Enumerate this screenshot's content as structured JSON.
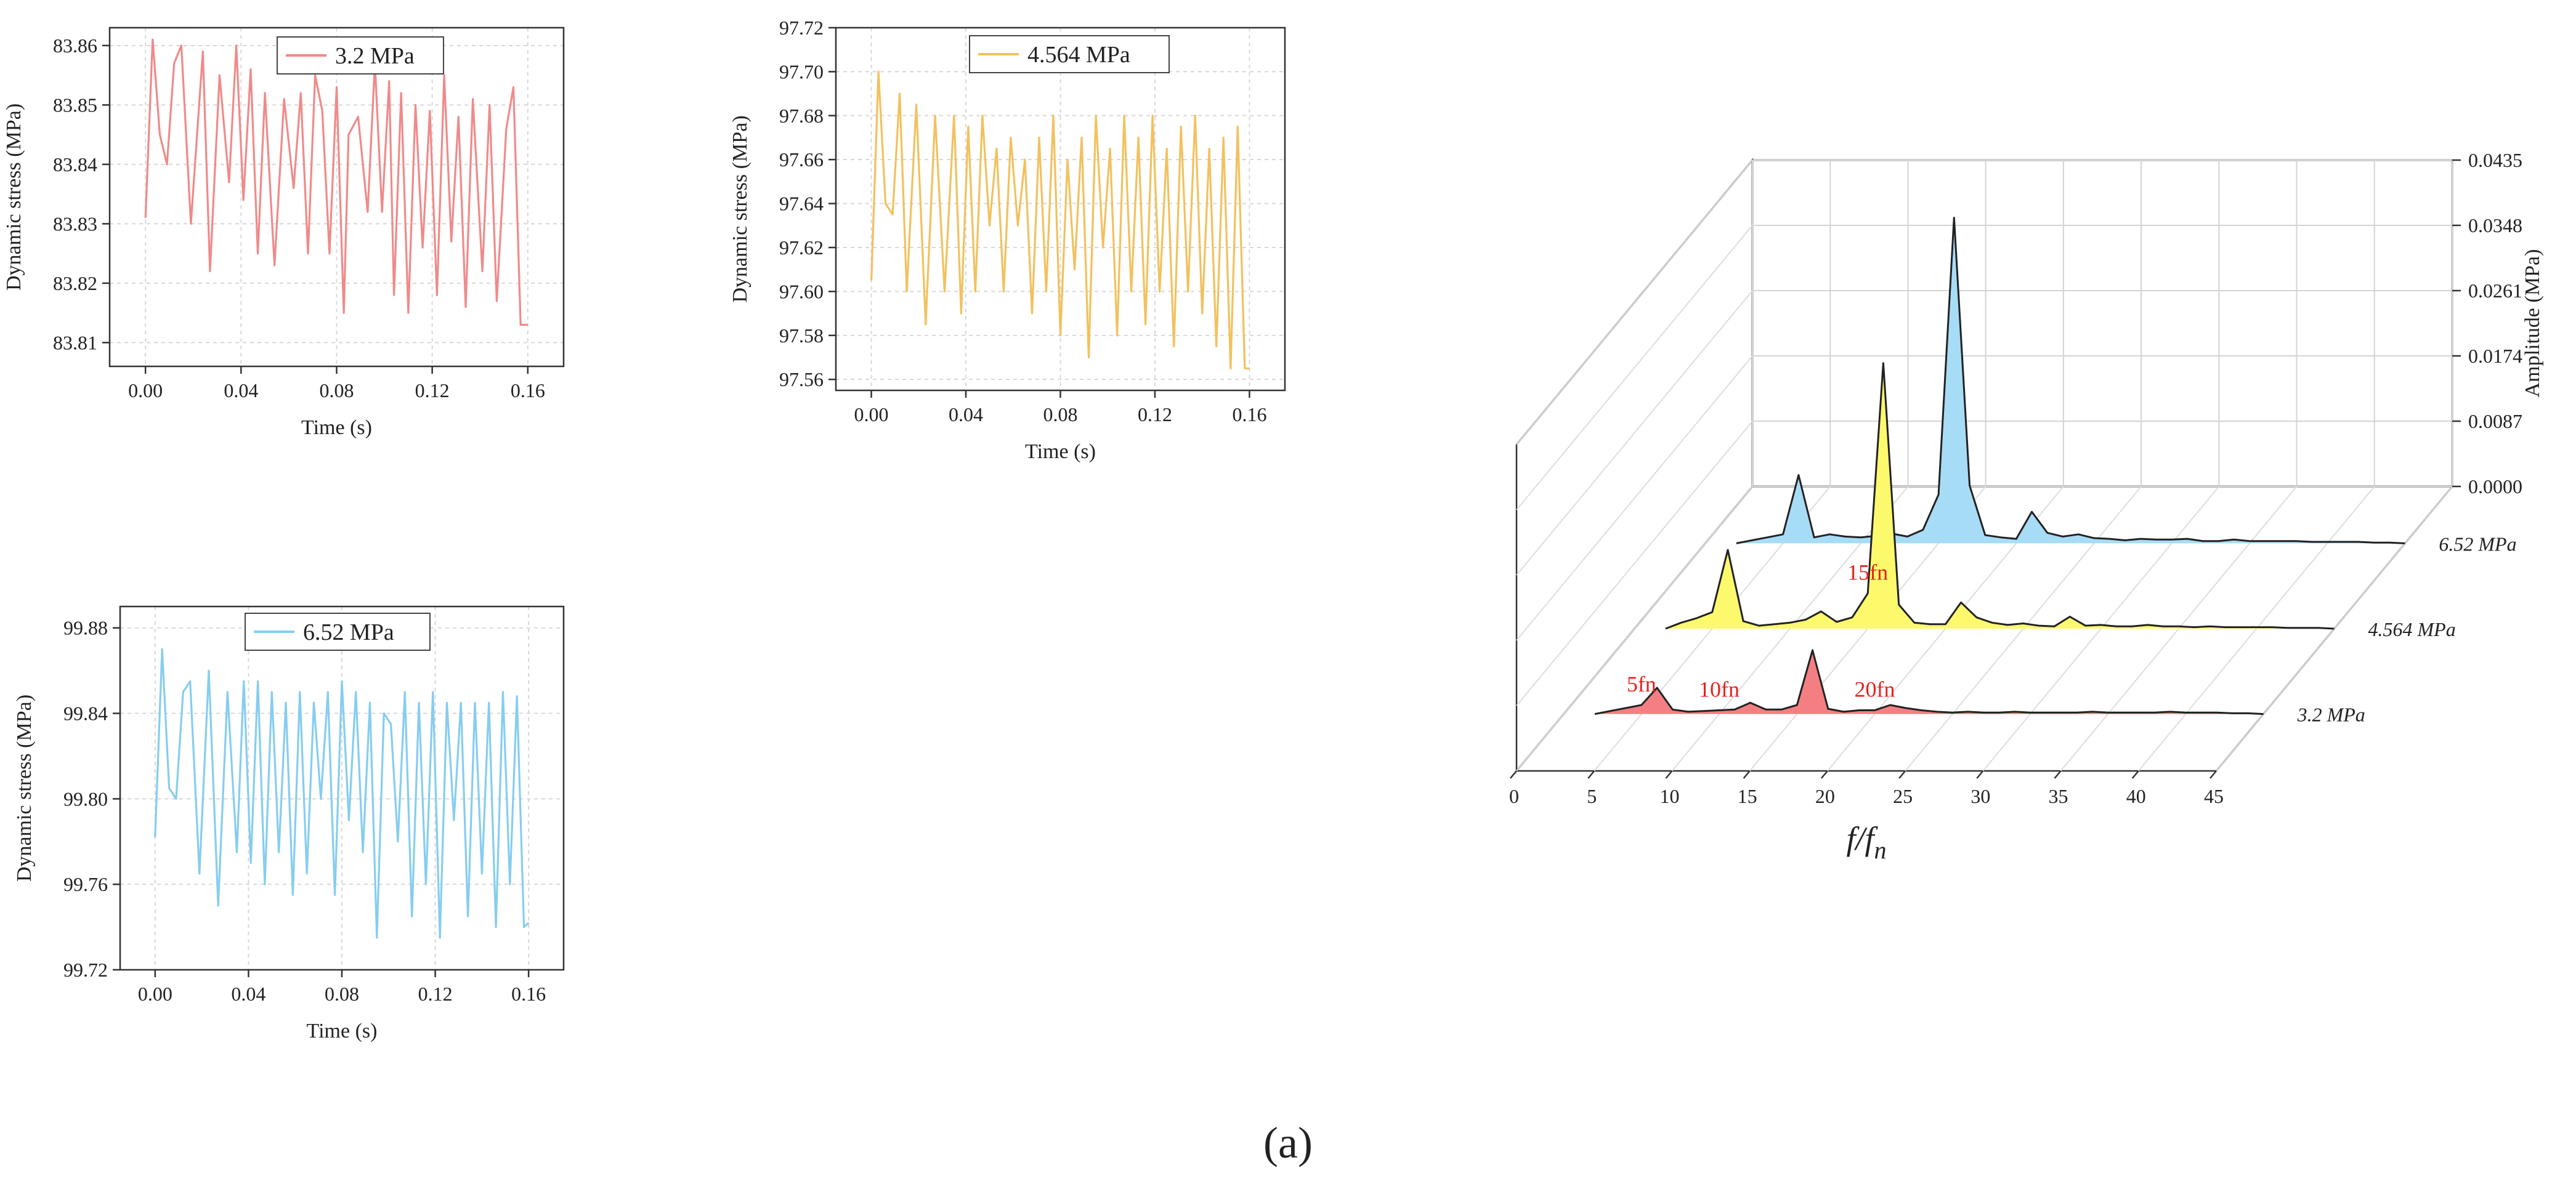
{
  "caption": "(a)",
  "chart_data": [
    {
      "id": "panel1",
      "type": "line",
      "legend": "3.2 MPa",
      "color": "#f08a8a",
      "xlabel": "Time (s)",
      "ylabel": "Dynamic stress (MPa)",
      "xlim": [
        -0.015,
        0.175
      ],
      "ylim": [
        83.806,
        83.863
      ],
      "xticks": [
        0.0,
        0.04,
        0.08,
        0.12,
        0.16
      ],
      "xtick_labels": [
        "0.00",
        "0.04",
        "0.08",
        "0.12",
        "0.16"
      ],
      "yticks": [
        83.81,
        83.82,
        83.83,
        83.84,
        83.85,
        83.86
      ],
      "ytick_labels": [
        "83.81",
        "83.82",
        "83.83",
        "83.84",
        "83.85",
        "83.86"
      ],
      "x": [
        0.0,
        0.003,
        0.006,
        0.009,
        0.012,
        0.015,
        0.019,
        0.024,
        0.027,
        0.031,
        0.035,
        0.038,
        0.041,
        0.044,
        0.047,
        0.05,
        0.054,
        0.058,
        0.062,
        0.065,
        0.068,
        0.071,
        0.074,
        0.077,
        0.08,
        0.083,
        0.085,
        0.089,
        0.093,
        0.096,
        0.099,
        0.102,
        0.104,
        0.107,
        0.11,
        0.113,
        0.116,
        0.119,
        0.122,
        0.125,
        0.128,
        0.131,
        0.134,
        0.137,
        0.141,
        0.144,
        0.147,
        0.151,
        0.154,
        0.157,
        0.16
      ],
      "y": [
        83.831,
        83.861,
        83.845,
        83.84,
        83.857,
        83.86,
        83.83,
        83.859,
        83.822,
        83.855,
        83.837,
        83.86,
        83.834,
        83.856,
        83.825,
        83.852,
        83.823,
        83.851,
        83.836,
        83.852,
        83.825,
        83.855,
        83.849,
        83.825,
        83.853,
        83.815,
        83.845,
        83.848,
        83.832,
        83.857,
        83.832,
        83.854,
        83.818,
        83.852,
        83.815,
        83.85,
        83.826,
        83.849,
        83.818,
        83.855,
        83.827,
        83.848,
        83.816,
        83.851,
        83.822,
        83.85,
        83.817,
        83.846,
        83.853,
        83.813,
        83.813
      ]
    },
    {
      "id": "panel2",
      "type": "line",
      "legend": "4.564 MPa",
      "color": "#f2c15e",
      "xlabel": "Time (s)",
      "ylabel": "Dynamic stress (MPa)",
      "xlim": [
        -0.015,
        0.175
      ],
      "ylim": [
        97.555,
        97.72
      ],
      "xticks": [
        0.0,
        0.04,
        0.08,
        0.12,
        0.16
      ],
      "xtick_labels": [
        "0.00",
        "0.04",
        "0.08",
        "0.12",
        "0.16"
      ],
      "yticks": [
        97.56,
        97.58,
        97.6,
        97.62,
        97.64,
        97.66,
        97.68,
        97.7,
        97.72
      ],
      "ytick_labels": [
        "97.56",
        "97.58",
        "97.60",
        "97.62",
        "97.64",
        "97.66",
        "97.68",
        "97.70",
        "97.72"
      ],
      "x": [
        0.0,
        0.003,
        0.006,
        0.009,
        0.012,
        0.015,
        0.019,
        0.023,
        0.027,
        0.031,
        0.035,
        0.038,
        0.041,
        0.044,
        0.047,
        0.05,
        0.053,
        0.056,
        0.059,
        0.062,
        0.065,
        0.068,
        0.071,
        0.074,
        0.077,
        0.08,
        0.083,
        0.086,
        0.089,
        0.092,
        0.095,
        0.098,
        0.101,
        0.104,
        0.107,
        0.11,
        0.113,
        0.116,
        0.119,
        0.122,
        0.125,
        0.128,
        0.131,
        0.134,
        0.137,
        0.14,
        0.143,
        0.146,
        0.149,
        0.152,
        0.155,
        0.158,
        0.16
      ],
      "y": [
        97.605,
        97.7,
        97.64,
        97.635,
        97.69,
        97.6,
        97.685,
        97.585,
        97.68,
        97.6,
        97.68,
        97.59,
        97.675,
        97.6,
        97.68,
        97.63,
        97.665,
        97.6,
        97.67,
        97.63,
        97.66,
        97.59,
        97.67,
        97.6,
        97.68,
        97.58,
        97.66,
        97.61,
        97.67,
        97.57,
        97.68,
        97.62,
        97.665,
        97.58,
        97.68,
        97.6,
        97.67,
        97.585,
        97.68,
        97.6,
        97.665,
        97.575,
        97.675,
        97.6,
        97.68,
        97.59,
        97.665,
        97.575,
        97.67,
        97.565,
        97.675,
        97.565,
        97.565
      ]
    },
    {
      "id": "panel3",
      "type": "line",
      "legend": "6.52 MPa",
      "color": "#86cdf0",
      "xlabel": "Time (s)",
      "ylabel": "Dynamic stress (MPa)",
      "xlim": [
        -0.015,
        0.175
      ],
      "ylim": [
        99.72,
        99.89
      ],
      "xticks": [
        0.0,
        0.04,
        0.08,
        0.12,
        0.16
      ],
      "xtick_labels": [
        "0.00",
        "0.04",
        "0.08",
        "0.12",
        "0.16"
      ],
      "yticks": [
        99.72,
        99.76,
        99.8,
        99.84,
        99.88
      ],
      "ytick_labels": [
        "99.72",
        "99.76",
        "99.80",
        "99.84",
        "99.88"
      ],
      "x": [
        0.0,
        0.003,
        0.006,
        0.009,
        0.012,
        0.015,
        0.019,
        0.023,
        0.027,
        0.031,
        0.035,
        0.038,
        0.041,
        0.044,
        0.047,
        0.05,
        0.053,
        0.056,
        0.059,
        0.062,
        0.065,
        0.068,
        0.071,
        0.074,
        0.077,
        0.08,
        0.083,
        0.086,
        0.089,
        0.092,
        0.095,
        0.098,
        0.101,
        0.104,
        0.107,
        0.11,
        0.113,
        0.116,
        0.119,
        0.122,
        0.125,
        0.128,
        0.131,
        0.134,
        0.137,
        0.14,
        0.143,
        0.146,
        0.149,
        0.152,
        0.155,
        0.158,
        0.16
      ],
      "y": [
        99.782,
        99.87,
        99.805,
        99.8,
        99.85,
        99.855,
        99.765,
        99.86,
        99.75,
        99.85,
        99.775,
        99.855,
        99.77,
        99.855,
        99.76,
        99.85,
        99.775,
        99.845,
        99.755,
        99.85,
        99.765,
        99.845,
        99.8,
        99.85,
        99.755,
        99.855,
        99.79,
        99.85,
        99.775,
        99.845,
        99.735,
        99.84,
        99.835,
        99.78,
        99.85,
        99.745,
        99.845,
        99.76,
        99.85,
        99.735,
        99.845,
        99.79,
        99.845,
        99.745,
        99.845,
        99.765,
        99.845,
        99.74,
        99.85,
        99.76,
        99.848,
        99.74,
        99.742
      ]
    },
    {
      "id": "panel4",
      "type": "area",
      "projection": "3d-waterfall",
      "xlabel": "f/fn",
      "xlabel_main": "f/f",
      "xlabel_sub": "n",
      "zlabel": "Amplitude (MPa)",
      "xlim": [
        0,
        45
      ],
      "zlim": [
        0,
        0.0435
      ],
      "xticks": [
        0,
        5,
        10,
        15,
        20,
        25,
        30,
        35,
        40,
        45
      ],
      "xtick_labels": [
        "0",
        "5",
        "10",
        "15",
        "20",
        "25",
        "30",
        "35",
        "40",
        "45"
      ],
      "zticks": [
        0,
        0.0087,
        0.0174,
        0.0261,
        0.0348,
        0.0435
      ],
      "ztick_labels": [
        "0.0000",
        "0.0087",
        "0.0174",
        "0.0261",
        "0.0348",
        "0.0435"
      ],
      "freq": [
        2,
        3,
        4,
        5,
        6,
        7,
        8,
        9,
        10,
        11,
        12,
        13,
        14,
        15,
        16,
        17,
        18,
        19,
        20,
        21,
        22,
        23,
        24,
        25,
        26,
        27,
        28,
        29,
        30,
        31,
        32,
        33,
        34,
        35,
        36,
        37,
        38,
        39,
        40,
        41,
        42,
        43,
        44,
        45
      ],
      "series": [
        {
          "name": "3.2 MPa",
          "color": "#f47f82",
          "values": [
            0.0,
            0.0004,
            0.0008,
            0.0012,
            0.0035,
            0.0006,
            0.0003,
            0.0004,
            0.0005,
            0.0006,
            0.0015,
            0.0006,
            0.0006,
            0.0012,
            0.0085,
            0.0007,
            0.0003,
            0.0005,
            0.0005,
            0.0012,
            0.0008,
            0.0005,
            0.0003,
            0.0002,
            0.0003,
            0.0002,
            0.0002,
            0.0003,
            0.0002,
            0.0002,
            0.0002,
            0.0002,
            0.0003,
            0.0002,
            0.0002,
            0.0002,
            0.0002,
            0.0003,
            0.0002,
            0.0002,
            0.0002,
            0.0001,
            0.0001,
            0.0
          ]
        },
        {
          "name": "4.564 MPa",
          "color": "#fcf96d",
          "values": [
            0.0,
            0.0008,
            0.0014,
            0.0022,
            0.0105,
            0.001,
            0.0004,
            0.0006,
            0.0008,
            0.0012,
            0.0023,
            0.0009,
            0.0015,
            0.0047,
            0.0354,
            0.0032,
            0.0008,
            0.0006,
            0.0006,
            0.0035,
            0.0015,
            0.0008,
            0.0005,
            0.0007,
            0.0004,
            0.0003,
            0.0016,
            0.0004,
            0.0005,
            0.0003,
            0.0003,
            0.0005,
            0.0003,
            0.0003,
            0.0002,
            0.0003,
            0.0002,
            0.0002,
            0.0002,
            0.0002,
            0.0001,
            0.0001,
            0.0001,
            0.0
          ]
        },
        {
          "name": "6.52 MPa",
          "color": "#a7dcf6",
          "values": [
            0.0,
            0.0004,
            0.0008,
            0.0012,
            0.0091,
            0.0008,
            0.0012,
            0.0009,
            0.0008,
            0.001,
            0.0013,
            0.0009,
            0.0018,
            0.0065,
            0.0434,
            0.0077,
            0.0011,
            0.0008,
            0.0006,
            0.0042,
            0.0014,
            0.0009,
            0.0012,
            0.0007,
            0.0006,
            0.0004,
            0.0006,
            0.0005,
            0.0005,
            0.0006,
            0.0003,
            0.0003,
            0.0005,
            0.0003,
            0.0003,
            0.0003,
            0.0003,
            0.0002,
            0.0002,
            0.0002,
            0.0002,
            0.0001,
            0.0001,
            0.0
          ]
        }
      ],
      "annotations": [
        {
          "text": "5fn",
          "x": 5,
          "series": "3.2 MPa"
        },
        {
          "text": "10fn",
          "x": 10,
          "series": "3.2 MPa"
        },
        {
          "text": "15fn",
          "x": 15,
          "series": "4.564 MPa"
        },
        {
          "text": "20fn",
          "x": 20,
          "series": "3.2 MPa"
        }
      ]
    }
  ]
}
